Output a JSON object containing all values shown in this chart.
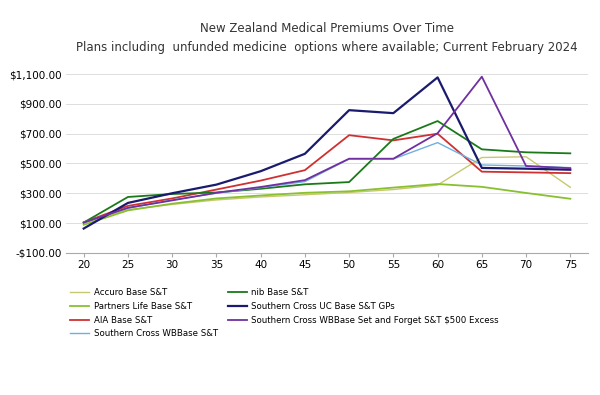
{
  "title_line1": "New Zealand Medical Premiums Over Time",
  "title_line2": "Plans including  unfunded medicine  options where available; Current February 2024",
  "x": [
    20,
    25,
    30,
    35,
    40,
    45,
    50,
    55,
    60,
    65,
    70,
    75
  ],
  "series": [
    {
      "label": "Accuro Base S&T",
      "color": "#c8c870",
      "linewidth": 1.0,
      "values": [
        100,
        190,
        225,
        255,
        275,
        290,
        305,
        325,
        355,
        540,
        545,
        340
      ]
    },
    {
      "label": "AIA Base S&T",
      "color": "#d03030",
      "linewidth": 1.3,
      "values": [
        105,
        215,
        265,
        325,
        385,
        455,
        690,
        655,
        700,
        445,
        440,
        435
      ]
    },
    {
      "label": "nib Base S&T",
      "color": "#1a7a1a",
      "linewidth": 1.3,
      "values": [
        103,
        275,
        295,
        305,
        330,
        360,
        375,
        665,
        785,
        595,
        575,
        568
      ]
    },
    {
      "label": "Partners Life Base S&T",
      "color": "#88c030",
      "linewidth": 1.3,
      "values": [
        88,
        185,
        230,
        265,
        285,
        303,
        313,
        338,
        362,
        343,
        302,
        263
      ]
    },
    {
      "label": "Southern Cross WBBase S&T",
      "color": "#70b0e0",
      "linewidth": 1.0,
      "values": [
        103,
        200,
        255,
        300,
        338,
        378,
        530,
        530,
        640,
        490,
        483,
        472
      ]
    },
    {
      "label": "Southern Cross UC Base S&T GPs",
      "color": "#1a1a6e",
      "linewidth": 1.6,
      "values": [
        63,
        235,
        300,
        358,
        448,
        565,
        858,
        838,
        1078,
        470,
        465,
        458
      ]
    },
    {
      "label": "Southern Cross WBBase Set and Forget S&T $500 Excess",
      "color": "#7030a0",
      "linewidth": 1.3,
      "values": [
        103,
        202,
        252,
        303,
        342,
        388,
        532,
        532,
        703,
        1083,
        483,
        468
      ]
    }
  ],
  "ylim": [
    -100,
    1200
  ],
  "xlim": [
    18,
    77
  ],
  "xticks": [
    20,
    25,
    30,
    35,
    40,
    45,
    50,
    55,
    60,
    65,
    70,
    75
  ],
  "yticks": [
    -100,
    100,
    300,
    500,
    700,
    900,
    1100
  ],
  "ytick_labels": [
    "-$100.00",
    "$100.00",
    "$300.00",
    "$500.00",
    "$700.00",
    "$900.00",
    "$1,100.00"
  ],
  "grid_color": "#d8d8d8",
  "background_color": "#ffffff",
  "legend_order": [
    0,
    3,
    1,
    4,
    2,
    5,
    6
  ],
  "legend_ncol": 2,
  "legend_fontsize": 6.2
}
